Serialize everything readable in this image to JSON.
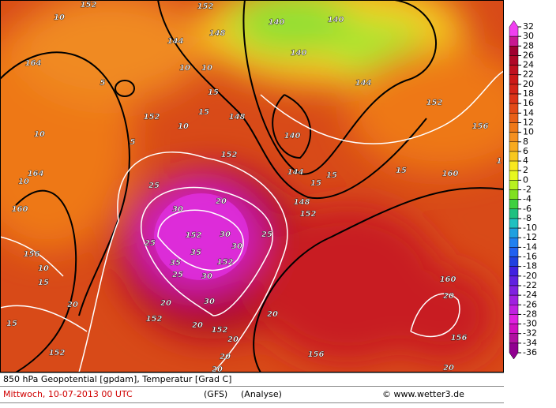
{
  "map": {
    "contour_labels": [
      "10",
      "152",
      "164",
      "10",
      "164",
      "10",
      "160",
      "156",
      "10",
      "15",
      "20",
      "15",
      "152",
      "152",
      "20",
      "20",
      "152",
      "20",
      "20",
      "20",
      "25",
      "30",
      "25",
      "152",
      "30",
      "35",
      "30",
      "152",
      "35",
      "30",
      "25",
      "30",
      "25",
      "20",
      "152",
      "148",
      "152",
      "144",
      "148",
      "152",
      "140",
      "140",
      "140",
      "144",
      "140",
      "144",
      "148",
      "152",
      "152",
      "156",
      "160",
      "15",
      "15",
      "15",
      "160",
      "20",
      "156",
      "156",
      "20",
      "20",
      "10",
      "10",
      "15",
      "5",
      "5",
      "10",
      "15",
      "1"
    ]
  },
  "colorbar": {
    "levels": [
      32,
      30,
      28,
      26,
      24,
      22,
      20,
      18,
      16,
      14,
      12,
      10,
      8,
      6,
      4,
      2,
      0,
      -2,
      -4,
      -6,
      -8,
      -10,
      -12,
      -14,
      -16,
      -18,
      -20,
      -22,
      -24,
      -26,
      -28,
      -30,
      -32,
      -34,
      -36
    ],
    "colors": [
      "#f040f0",
      "#c81890",
      "#a00030",
      "#b00828",
      "#c01020",
      "#cc1818",
      "#d42418",
      "#dc3418",
      "#e24a18",
      "#e86018",
      "#ee7818",
      "#f49020",
      "#f8aa20",
      "#f8c820",
      "#f8e820",
      "#e8f820",
      "#b8f020",
      "#80e020",
      "#40d040",
      "#20c080",
      "#20c0c0",
      "#20a0e0",
      "#2080f0",
      "#2060f0",
      "#2040e0",
      "#4020e0",
      "#6020e0",
      "#8020e0",
      "#a020e0",
      "#c020e0",
      "#e020e0",
      "#d010c0",
      "#b010a0",
      "#900090"
    ]
  },
  "footer": {
    "title": "850 hPa Geopotential [gpdam], Temperatur [Grad C]",
    "date": "Mittwoch, 10-07-2013  00 UTC",
    "model": "(GFS)",
    "run": "(Analyse)",
    "credit": "© www.wetter3.de"
  }
}
